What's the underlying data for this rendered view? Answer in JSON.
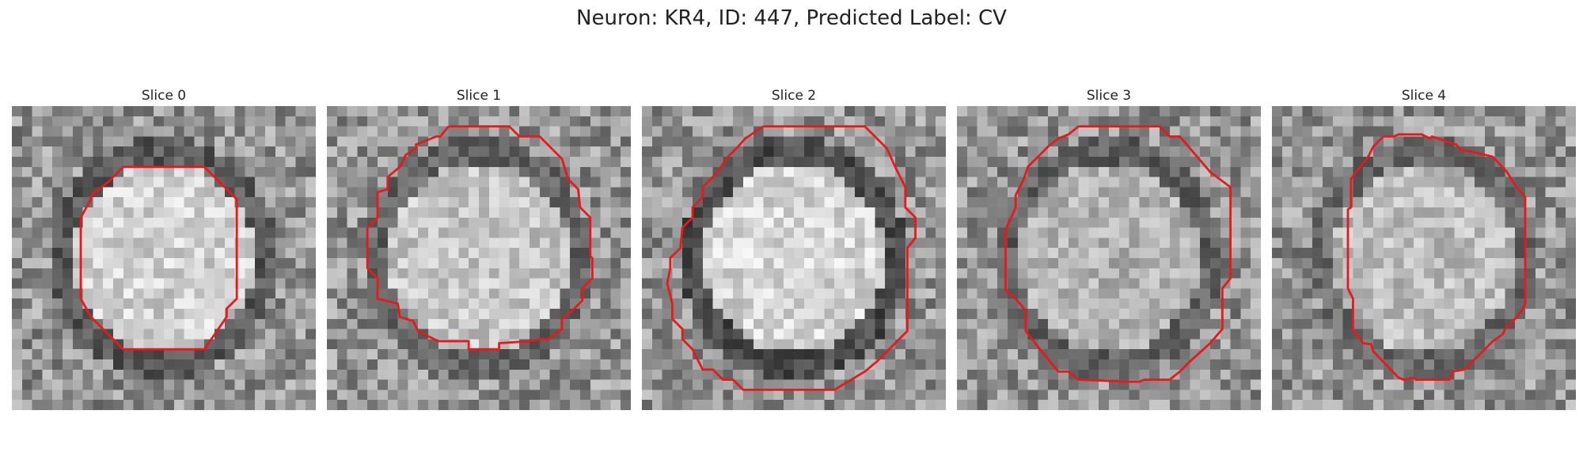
{
  "figure": {
    "title": "Neuron: KR4, ID: 447, Predicted Label: CV",
    "contour_color": "#e8191a"
  },
  "panels": [
    {
      "label": "Slice 0",
      "seed": 11,
      "center_brightness": 0.82,
      "ring_darkness": 0.35
    },
    {
      "label": "Slice 1",
      "seed": 23,
      "center_brightness": 0.78,
      "ring_darkness": 0.4
    },
    {
      "label": "Slice 2",
      "seed": 37,
      "center_brightness": 0.84,
      "ring_darkness": 0.3
    },
    {
      "label": "Slice 3",
      "seed": 51,
      "center_brightness": 0.7,
      "ring_darkness": 0.38
    },
    {
      "label": "Slice 4",
      "seed": 67,
      "center_brightness": 0.74,
      "ring_darkness": 0.42
    }
  ]
}
